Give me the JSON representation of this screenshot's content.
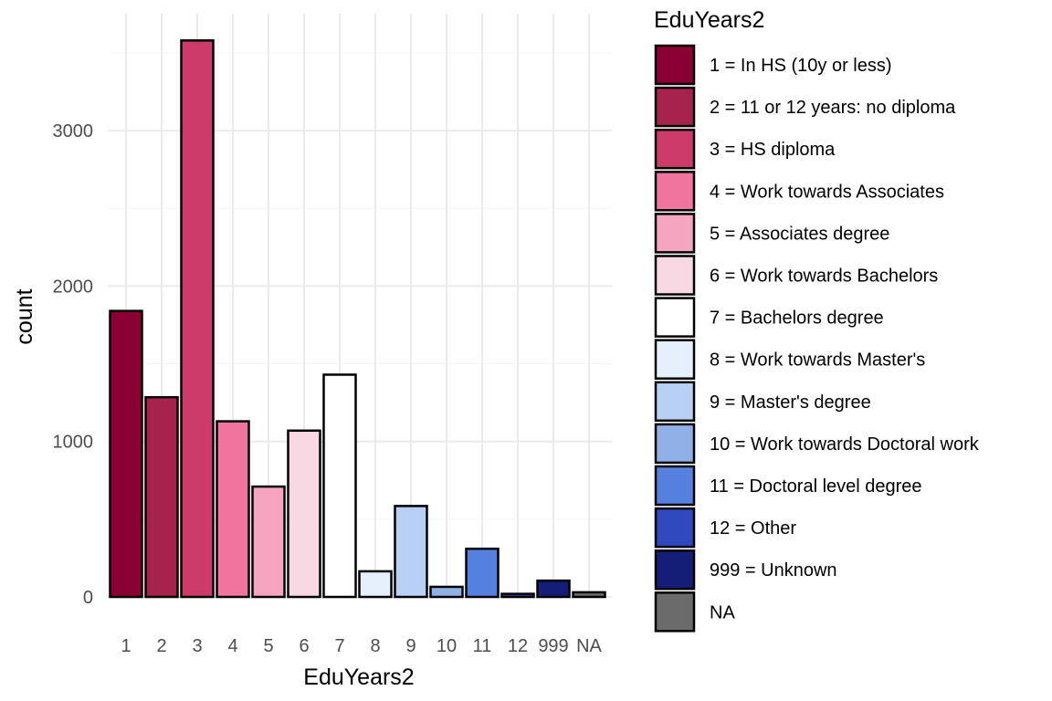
{
  "chart_data": {
    "type": "bar",
    "xlabel": "EduYears2",
    "ylabel": "count",
    "ylim": [
      0,
      3600
    ],
    "yticks": [
      0,
      1000,
      2000,
      3000
    ],
    "grid": true,
    "legend_position": "right",
    "legend_title": "EduYears2",
    "categories": [
      "1",
      "2",
      "3",
      "4",
      "5",
      "6",
      "7",
      "8",
      "9",
      "10",
      "11",
      "12",
      "999",
      "NA"
    ],
    "values": [
      1840,
      1285,
      3580,
      1130,
      710,
      1070,
      1430,
      165,
      585,
      65,
      310,
      20,
      105,
      30
    ],
    "colors": [
      "#8b0032",
      "#a6234e",
      "#cc3b69",
      "#ef759e",
      "#f6a5c0",
      "#f8d8e3",
      "#ffffff",
      "#e6f0fc",
      "#b9d0f5",
      "#8fb1e7",
      "#5580df",
      "#3048bd",
      "#141e76",
      "#6b6b6b"
    ],
    "legend_labels": [
      "1 = In HS (10y or less)",
      "2 = 11 or 12 years: no diploma",
      "3 = HS diploma",
      "4 = Work towards Associates",
      "5 = Associates degree",
      "6 = Work towards Bachelors",
      "7 = Bachelors degree",
      "8 = Work towards Master's",
      "9 = Master's degree",
      "10 = Work towards Doctoral work",
      "11 = Doctoral level degree",
      "12 = Other",
      "999 = Unknown",
      "NA"
    ]
  }
}
